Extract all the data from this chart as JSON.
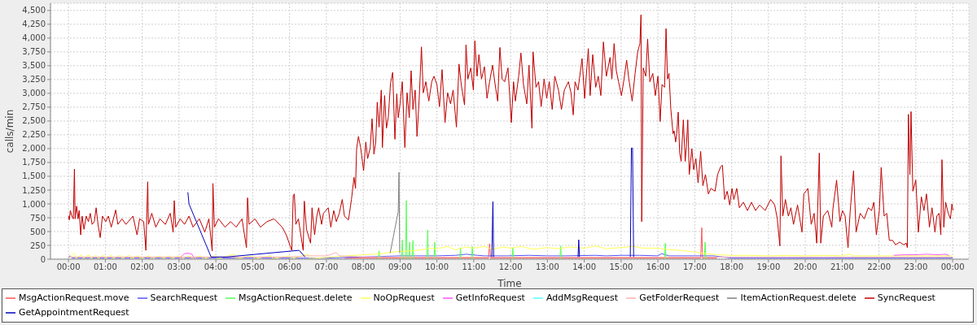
{
  "chart_data": {
    "type": "line",
    "xlabel": "Time",
    "ylabel": "calls/min",
    "grid": true,
    "legend": "bottom",
    "xlim": [
      -0.49,
      24.44
    ],
    "ylim": [
      0,
      4630
    ],
    "xticks": [
      {
        "value": 0,
        "label": "00:00"
      },
      {
        "value": 1,
        "label": "01:00"
      },
      {
        "value": 2,
        "label": "02:00"
      },
      {
        "value": 3,
        "label": "03:00"
      },
      {
        "value": 4,
        "label": "04:00"
      },
      {
        "value": 5,
        "label": "05:00"
      },
      {
        "value": 6,
        "label": "06:00"
      },
      {
        "value": 7,
        "label": "07:00"
      },
      {
        "value": 8,
        "label": "08:00"
      },
      {
        "value": 9,
        "label": "09:00"
      },
      {
        "value": 10,
        "label": "10:00"
      },
      {
        "value": 11,
        "label": "11:00"
      },
      {
        "value": 12,
        "label": "12:00"
      },
      {
        "value": 13,
        "label": "13:00"
      },
      {
        "value": 14,
        "label": "14:00"
      },
      {
        "value": 15,
        "label": "15:00"
      },
      {
        "value": 16,
        "label": "16:00"
      },
      {
        "value": 17,
        "label": "17:00"
      },
      {
        "value": 18,
        "label": "18:00"
      },
      {
        "value": 19,
        "label": "19:00"
      },
      {
        "value": 20,
        "label": "20:00"
      },
      {
        "value": 21,
        "label": "21:00"
      },
      {
        "value": 22,
        "label": "22:00"
      },
      {
        "value": 23,
        "label": "23:00"
      },
      {
        "value": 24,
        "label": "00:00"
      }
    ],
    "yticks": [
      0,
      250,
      500,
      750,
      {
        "value": 1000,
        "label": "1,000"
      },
      {
        "value": 1250,
        "label": "1,250"
      },
      {
        "value": 1500,
        "label": "1,500"
      },
      {
        "value": 1750,
        "label": "1,750"
      },
      {
        "value": 2000,
        "label": "2,000"
      },
      {
        "value": 2250,
        "label": "2,250"
      },
      {
        "value": 2500,
        "label": "2,500"
      },
      {
        "value": 2750,
        "label": "2,750"
      },
      {
        "value": 3000,
        "label": "3,000"
      },
      {
        "value": 3250,
        "label": "3,250"
      },
      {
        "value": 3500,
        "label": "3,500"
      },
      {
        "value": 3750,
        "label": "3,750"
      },
      {
        "value": 4000,
        "label": "4,000"
      },
      {
        "value": 4250,
        "label": "4,250"
      },
      {
        "value": 4500,
        "label": "4,500"
      }
    ],
    "series": [
      {
        "name": "MsgActionRequest.move",
        "color": "#ff5555",
        "x": [
          7.5,
          8,
          9.5,
          10.3,
          11.2,
          11.4,
          11.43,
          11.46,
          12.3,
          13,
          14,
          15,
          16,
          17,
          17.16,
          17.19,
          17.21,
          17.6
        ],
        "values": [
          20,
          20,
          20,
          20,
          20,
          20,
          280,
          20,
          20,
          20,
          20,
          20,
          20,
          20,
          20,
          570,
          20,
          20
        ]
      },
      {
        "name": "SearchRequest",
        "color": "#5555ff",
        "x": [
          0,
          0.03,
          0.1,
          0.5,
          1,
          1.5,
          2,
          2.5,
          3,
          3.5,
          4,
          4.5,
          5,
          5.5,
          6,
          6.5,
          7,
          8.5,
          9,
          9.5,
          10,
          10.5,
          10.8,
          11.1,
          11.3,
          11.6,
          11.9,
          12.5,
          13,
          13.5,
          14.3,
          14.6,
          15,
          15.5,
          16,
          16.1,
          16.3,
          16.5,
          17,
          17.5,
          18,
          18.5,
          19,
          19.5,
          20,
          20.5,
          21,
          21.5,
          22,
          22.5,
          23,
          23.5,
          24
        ],
        "values": [
          20,
          60,
          20,
          20,
          20,
          20,
          20,
          20,
          20,
          20,
          20,
          20,
          20,
          20,
          20,
          20,
          20,
          50,
          60,
          60,
          60,
          70,
          90,
          70,
          60,
          60,
          60,
          70,
          60,
          60,
          70,
          60,
          70,
          70,
          60,
          100,
          60,
          60,
          60,
          60,
          20,
          20,
          20,
          20,
          20,
          20,
          20,
          20,
          20,
          20,
          20,
          20,
          20
        ]
      },
      {
        "name": "MsgActionRequest.delete",
        "color": "#55ff55",
        "x": [
          8.41,
          8.43,
          8.45,
          8.7,
          9.04,
          9.06,
          9.08,
          9.11,
          9.15,
          9.17,
          9.19,
          9.21,
          9.24,
          9.26,
          9.28,
          9.3,
          9.33,
          9.35,
          9.37,
          9.5,
          9.73,
          9.75,
          9.77,
          9.85,
          9.92,
          9.94,
          9.96,
          10.3,
          10.62,
          10.64,
          10.66,
          10.8,
          10.94,
          10.96,
          10.98,
          11.5,
          12.04,
          12.06,
          12.08,
          12.7,
          13.34,
          13.36,
          13.38,
          14.8,
          16.18,
          16.2,
          16.22,
          16.7,
          17.26,
          17.28,
          17.3
        ],
        "values": [
          10,
          150,
          10,
          null,
          10,
          350,
          10,
          null,
          10,
          1060,
          10,
          null,
          10,
          310,
          10,
          null,
          10,
          340,
          10,
          null,
          10,
          530,
          10,
          null,
          10,
          310,
          10,
          null,
          10,
          210,
          10,
          null,
          10,
          230,
          10,
          null,
          10,
          210,
          10,
          null,
          10,
          240,
          10,
          null,
          10,
          290,
          10,
          null,
          10,
          310,
          10
        ]
      },
      {
        "name": "NoOpRequest",
        "color": "#ffff55",
        "x": [
          0,
          0.15,
          0.2,
          0.35,
          0.4,
          0.55,
          0.6,
          0.75,
          0.8,
          0.95,
          1,
          1.15,
          1.2,
          1.4,
          1.45,
          1.65,
          1.7,
          1.9,
          1.95,
          2.2,
          2.25,
          2.5,
          2.55,
          2.75,
          2.8,
          3,
          3.05,
          3.3,
          3.35,
          3.6,
          3.65,
          4,
          4.05,
          4.5,
          4.55,
          5,
          5.05,
          5.5,
          5.55,
          6,
          6.05,
          6.5,
          6.55,
          8,
          8.5,
          8.8,
          9,
          9.3,
          9.6,
          9.8,
          10,
          10.3,
          10.5,
          10.8,
          11,
          11.3,
          11.5,
          11.8,
          12,
          12.3,
          12.6,
          13,
          13.3,
          13.6,
          14,
          14.3,
          14.6,
          15,
          15.3,
          15.6,
          16,
          16.3,
          16.6,
          17,
          17.3,
          17.6,
          18,
          18.5,
          19,
          19.5,
          20,
          20.5,
          21,
          21.2,
          21.3,
          22,
          22.5,
          23,
          23.5,
          24
        ],
        "values": [
          10,
          110,
          10,
          80,
          10,
          80,
          10,
          70,
          10,
          70,
          10,
          70,
          10,
          70,
          10,
          70,
          10,
          60,
          10,
          60,
          10,
          60,
          10,
          60,
          10,
          60,
          10,
          60,
          10,
          60,
          10,
          60,
          10,
          90,
          10,
          60,
          10,
          60,
          10,
          60,
          10,
          90,
          10,
          80,
          100,
          130,
          140,
          150,
          170,
          200,
          190,
          230,
          170,
          220,
          200,
          230,
          180,
          220,
          200,
          230,
          180,
          210,
          190,
          220,
          200,
          240,
          190,
          210,
          230,
          200,
          200,
          170,
          160,
          130,
          100,
          80,
          70,
          70,
          60,
          70,
          60,
          70,
          60,
          90,
          60,
          60,
          60,
          60,
          60,
          60
        ]
      },
      {
        "name": "GetInfoRequest",
        "color": "#ff55ff",
        "x": [
          3,
          3.08,
          3.15,
          3.25,
          3.35,
          3.42,
          3.5,
          22.4,
          22.7,
          23,
          23.3,
          23.6,
          23.8,
          23.9
        ],
        "values": [
          10,
          60,
          100,
          110,
          90,
          10,
          null,
          70,
          80,
          80,
          90,
          80,
          90,
          70
        ]
      },
      {
        "name": "AddMsgRequest",
        "color": "#55ffff"
      },
      {
        "name": "GetFolderRequest",
        "color": "#ffafaf",
        "x": [
          0,
          1,
          2,
          3,
          5,
          6,
          6.5,
          7,
          7.27,
          7.35,
          8,
          9,
          10,
          11,
          12,
          13,
          14,
          15,
          16,
          17,
          18,
          20,
          22,
          24
        ],
        "values": [
          40,
          40,
          40,
          40,
          40,
          40,
          60,
          60,
          120,
          60,
          40,
          40,
          40,
          40,
          40,
          40,
          40,
          40,
          40,
          40,
          40,
          40,
          40,
          40
        ]
      },
      {
        "name": "ItemActionRequest.delete",
        "color": "#808080",
        "x": [
          8.73,
          8.95,
          8.97,
          8.99
        ],
        "values": [
          110,
          860,
          1570,
          110
        ]
      },
      {
        "name": "SyncRequest",
        "color": "#c00000",
        "x": [
          0,
          0.02,
          0.05,
          0.09,
          0.13,
          0.16,
          0.18,
          0.22,
          0.26,
          0.29,
          0.33,
          0.37,
          0.42,
          0.48,
          0.54,
          0.59,
          0.64,
          0.7,
          0.75,
          0.8,
          0.86,
          0.92,
          1.01,
          1.08,
          1.16,
          1.28,
          1.34,
          1.45,
          1.56,
          1.75,
          1.86,
          1.93,
          2.04,
          2.1,
          2.12,
          2.15,
          2.17,
          2.26,
          2.37,
          2.48,
          2.63,
          2.76,
          2.84,
          2.87,
          2.91,
          3.03,
          3.15,
          3.27,
          3.38,
          3.55,
          3.7,
          3.81,
          3.9,
          3.92,
          3.96,
          4.07,
          4.25,
          4.4,
          4.55,
          4.71,
          4.83,
          4.86,
          4.9,
          5.06,
          5.21,
          5.39,
          5.58,
          5.8,
          5.91,
          6.06,
          6.1,
          6.13,
          6.17,
          6.24,
          6.37,
          6.4,
          6.46,
          6.57,
          6.61,
          6.68,
          6.74,
          6.79,
          6.87,
          6.92,
          7.05,
          7.12,
          7.2,
          7.27,
          7.35,
          7.43,
          7.49,
          7.6,
          7.68,
          7.75,
          7.79,
          7.82,
          7.87,
          7.93,
          8.01,
          8.07,
          8.12,
          8.19,
          8.24,
          8.29,
          8.34,
          8.38,
          8.43,
          8.49,
          8.52,
          8.58,
          8.63,
          8.68,
          8.74,
          8.8,
          8.86,
          8.91,
          8.95,
          9,
          9.06,
          9.13,
          9.19,
          9.25,
          9.3,
          9.35,
          9.41,
          9.46,
          9.52,
          9.58,
          9.63,
          9.7,
          9.78,
          9.86,
          9.92,
          10,
          10.07,
          10.14,
          10.22,
          10.29,
          10.37,
          10.44,
          10.53,
          10.6,
          10.66,
          10.75,
          10.79,
          10.84,
          10.92,
          10.99,
          11.03,
          11.09,
          11.14,
          11.21,
          11.29,
          11.36,
          11.43,
          11.51,
          11.58,
          11.65,
          11.71,
          11.77,
          11.84,
          11.93,
          12.02,
          12.08,
          12.13,
          12.22,
          12.28,
          12.35,
          12.44,
          12.5,
          12.58,
          12.61,
          12.69,
          12.76,
          12.83,
          12.91,
          12.98,
          13.05,
          13.13,
          13.2,
          13.3,
          13.38,
          13.46,
          13.57,
          13.64,
          13.7,
          13.75,
          13.83,
          13.94,
          14.01,
          14.11,
          14.16,
          14.23,
          14.31,
          14.38,
          14.45,
          14.52,
          14.6,
          14.7,
          14.75,
          14.81,
          14.87,
          14.93,
          15.01,
          15.08,
          15.15,
          15.21,
          15.3,
          15.38,
          15.45,
          15.51,
          15.54,
          15.56,
          15.6,
          15.67,
          15.72,
          15.78,
          15.86,
          15.93,
          16,
          16.06,
          16.11,
          16.18,
          16.22,
          16.26,
          16.3,
          16.35,
          16.41,
          16.44,
          16.48,
          16.51,
          16.55,
          16.59,
          16.63,
          16.69,
          16.74,
          16.77,
          16.81,
          16.85,
          16.92,
          16.97,
          17.03,
          17.09,
          17.16,
          17.22,
          17.29,
          17.37,
          17.44,
          17.55,
          17.62,
          17.7,
          17.75,
          17.81,
          17.88,
          17.95,
          18.01,
          18.06,
          18.14,
          18.21,
          18.32,
          18.43,
          18.54,
          18.65,
          18.76,
          18.91,
          19.06,
          19.17,
          19.24,
          19.31,
          19.34,
          19.39,
          19.46,
          19.54,
          19.61,
          19.68,
          19.79,
          19.91,
          19.96,
          20.07,
          20.16,
          20.24,
          20.31,
          20.38,
          20.42,
          20.49,
          20.61,
          20.72,
          20.75,
          20.85,
          20.94,
          21.01,
          21.08,
          21.16,
          21.22,
          21.31,
          21.38,
          21.49,
          21.6,
          21.71,
          21.8,
          21.86,
          21.93,
          22.01,
          22.06,
          22.14,
          22.21,
          22.28,
          22.37,
          22.45,
          22.56,
          22.67,
          22.74,
          22.77,
          22.8,
          22.84,
          22.87,
          22.92,
          23,
          23.07,
          23.15,
          23.22,
          23.29,
          23.37,
          23.44,
          23.52,
          23.57,
          23.63,
          23.68,
          23.71,
          23.76,
          23.81,
          23.88,
          23.94,
          23.98,
          24.01
        ],
        "values": [
          780,
          710,
          880,
          780,
          730,
          1630,
          730,
          960,
          730,
          880,
          440,
          780,
          540,
          780,
          680,
          830,
          630,
          680,
          930,
          630,
          390,
          780,
          680,
          780,
          580,
          890,
          630,
          730,
          630,
          780,
          440,
          730,
          680,
          160,
          680,
          1400,
          630,
          830,
          580,
          730,
          630,
          830,
          490,
          1060,
          580,
          730,
          630,
          780,
          580,
          730,
          490,
          730,
          150,
          1370,
          580,
          730,
          580,
          680,
          580,
          730,
          210,
          1110,
          630,
          730,
          580,
          680,
          730,
          580,
          440,
          160,
          1150,
          1180,
          630,
          730,
          160,
          1050,
          540,
          290,
          930,
          440,
          780,
          930,
          630,
          830,
          930,
          580,
          880,
          680,
          830,
          1080,
          780,
          710,
          1080,
          1480,
          1280,
          2000,
          2220,
          2020,
          1600,
          2120,
          1820,
          2020,
          2540,
          1900,
          2120,
          2840,
          2390,
          3060,
          2020,
          2960,
          2370,
          2560,
          3180,
          3380,
          2170,
          2990,
          2560,
          2810,
          3210,
          2020,
          3010,
          2560,
          3410,
          2710,
          3060,
          2220,
          2910,
          3840,
          3010,
          3210,
          2860,
          3210,
          3310,
          3160,
          2760,
          3430,
          2470,
          3010,
          2810,
          3060,
          2390,
          3530,
          3160,
          2790,
          3880,
          3260,
          3460,
          3060,
          3950,
          3310,
          3700,
          3260,
          3480,
          2910,
          3210,
          3510,
          3160,
          2860,
          3830,
          3260,
          3210,
          3460,
          2470,
          3210,
          2860,
          3310,
          3730,
          3160,
          2810,
          3510,
          2370,
          3750,
          3110,
          3210,
          2760,
          3260,
          2910,
          3210,
          2710,
          3310,
          3060,
          2710,
          3060,
          3210,
          3010,
          2610,
          3210,
          3060,
          3630,
          2910,
          3810,
          2960,
          3700,
          3110,
          3310,
          2960,
          3930,
          3310,
          3650,
          3260,
          3900,
          3410,
          3210,
          2960,
          3260,
          3600,
          3260,
          2860,
          3360,
          3750,
          3900,
          4420,
          680,
          3460,
          3310,
          3980,
          3210,
          3360,
          2960,
          3310,
          2490,
          3160,
          3110,
          4170,
          3260,
          3360,
          2710,
          2270,
          2320,
          2120,
          2270,
          2660,
          1920,
          1770,
          2520,
          1770,
          2020,
          2520,
          1530,
          2000,
          1620,
          1820,
          1380,
          1950,
          1330,
          1530,
          1180,
          1280,
          1230,
          1530,
          1670,
          1700,
          1080,
          1230,
          980,
          1280,
          1080,
          1280,
          930,
          1030,
          880,
          1030,
          880,
          980,
          880,
          1080,
          980,
          730,
          240,
          1870,
          780,
          1080,
          780,
          930,
          630,
          980,
          490,
          1180,
          1280,
          630,
          830,
          290,
          1920,
          290,
          780,
          880,
          580,
          910,
          1430,
          680,
          880,
          780,
          210,
          880,
          1600,
          490,
          830,
          730,
          930,
          880,
          1030,
          440,
          880,
          1660,
          780,
          830,
          340,
          340,
          260,
          310,
          260,
          290,
          210,
          2620,
          1530,
          2670,
          1230,
          1430,
          490,
          1130,
          880,
          1180,
          580,
          930,
          490,
          780,
          830,
          440,
          1800,
          580,
          1030,
          830,
          730,
          1000,
          880
        ]
      },
      {
        "name": "GetAppointmentRequest",
        "color": "#0000c0",
        "x": [
          3.24,
          3.27,
          3.87,
          4.29,
          6.26,
          6.42,
          6.6,
          11.49,
          11.52,
          11.54,
          11.6,
          13.83,
          13.85,
          13.87,
          13.9,
          15.25,
          15.28,
          15.31,
          15.34
        ],
        "values": [
          1210,
          1000,
          40,
          40,
          160,
          40,
          null,
          40,
          1040,
          40,
          null,
          40,
          350,
          40,
          null,
          40,
          2010,
          2010,
          40
        ]
      }
    ]
  }
}
